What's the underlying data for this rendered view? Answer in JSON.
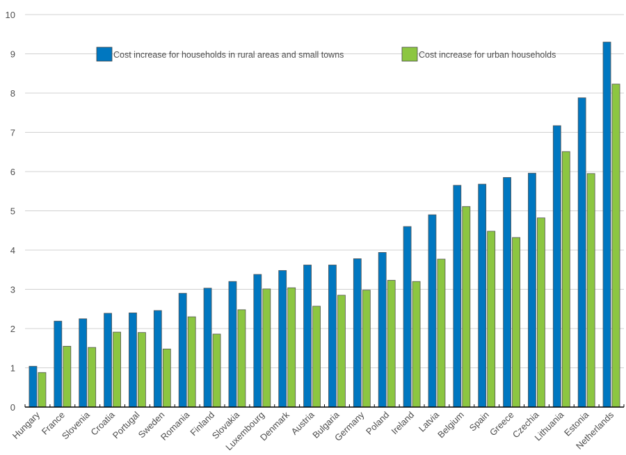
{
  "chart_data": {
    "type": "bar",
    "title": "",
    "xlabel": "",
    "ylabel": "",
    "ylim": [
      0,
      10
    ],
    "yticks": [
      0,
      1,
      2,
      3,
      4,
      5,
      6,
      7,
      8,
      9,
      10
    ],
    "grid": true,
    "legend_position": "top",
    "categories": [
      "Hungary",
      "France",
      "Slovenia",
      "Croatia",
      "Portugal",
      "Sweden",
      "Romania",
      "Finland",
      "Slovakia",
      "Luxembourg",
      "Denmark",
      "Austria",
      "Bulgaria",
      "Germany",
      "Poland",
      "Ireland",
      "Latvia",
      "Belgium",
      "Spain",
      "Greece",
      "Czechia",
      "Lithuania",
      "Estonia",
      "Netherlands"
    ],
    "series": [
      {
        "name": "Cost increase for households in rural areas and small towns",
        "color": "#0077c0",
        "values": [
          1.04,
          2.19,
          2.25,
          2.39,
          2.4,
          2.46,
          2.9,
          3.03,
          3.2,
          3.38,
          3.48,
          3.62,
          3.62,
          3.78,
          3.94,
          4.6,
          4.9,
          5.65,
          5.68,
          5.85,
          5.96,
          7.17,
          7.88,
          9.3
        ]
      },
      {
        "name": "Cost increase for urban households",
        "color": "#8cc641",
        "values": [
          0.88,
          1.55,
          1.52,
          1.91,
          1.9,
          1.48,
          2.3,
          1.86,
          2.48,
          3.01,
          3.04,
          2.57,
          2.85,
          2.98,
          3.23,
          3.2,
          3.77,
          5.11,
          4.48,
          4.32,
          4.82,
          6.51,
          5.95,
          8.23
        ]
      }
    ]
  }
}
